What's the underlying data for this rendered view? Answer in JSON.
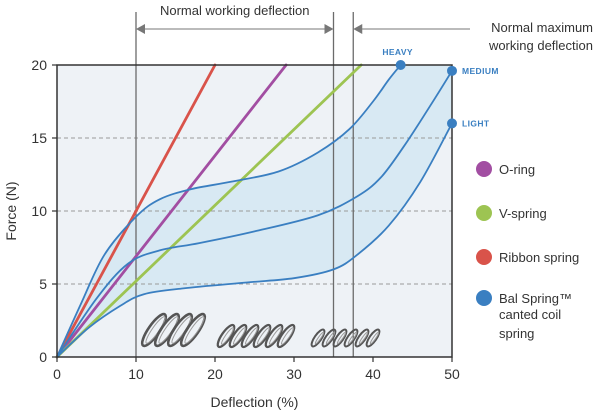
{
  "chart_data": {
    "type": "line",
    "xlabel": "Deflection (%)",
    "ylabel": "Force (N)",
    "xlim": [
      0,
      50
    ],
    "ylim": [
      0,
      20
    ],
    "x_ticks": [
      "0",
      "10",
      "20",
      "30",
      "40",
      "50"
    ],
    "y_ticks": [
      "0",
      "5",
      "10",
      "15",
      "20"
    ],
    "grid": "horizontal dashed at y = 5, 10, 15",
    "annotations": {
      "normal_working": "Normal working deflection",
      "normal_max_line1": "Normal maximum",
      "normal_max_line2": "working deflection",
      "normal_working_range": [
        10,
        35
      ],
      "normal_max_at": 37.5
    },
    "shaded_region": "Bal Spring canted coil spring operating band (LIGHT to HEAVY)",
    "series": [
      {
        "name": "Ribbon spring",
        "color": "#d9534a",
        "points": [
          [
            0,
            0
          ],
          [
            20,
            20
          ]
        ]
      },
      {
        "name": "O-ring",
        "color": "#a24ea2",
        "points": [
          [
            0,
            0
          ],
          [
            29,
            20
          ]
        ]
      },
      {
        "name": "V-spring",
        "color": "#9dc452",
        "points": [
          [
            0,
            0
          ],
          [
            38.5,
            20
          ]
        ]
      },
      {
        "name": "HEAVY",
        "color": "#3a7fc1",
        "points": [
          [
            0,
            0
          ],
          [
            3,
            3.6
          ],
          [
            6,
            7
          ],
          [
            10,
            9.6
          ],
          [
            13,
            10.8
          ],
          [
            17,
            11.5
          ],
          [
            22,
            12
          ],
          [
            28,
            12.7
          ],
          [
            33,
            14
          ],
          [
            37,
            15.6
          ],
          [
            40,
            17.5
          ],
          [
            42,
            19
          ],
          [
            43.5,
            20
          ]
        ]
      },
      {
        "name": "MEDIUM",
        "color": "#3a7fc1",
        "points": [
          [
            0,
            0
          ],
          [
            5,
            4
          ],
          [
            9,
            6.4
          ],
          [
            13,
            7.3
          ],
          [
            18,
            7.8
          ],
          [
            25,
            8.6
          ],
          [
            33,
            9.7
          ],
          [
            38,
            11
          ],
          [
            41,
            12.3
          ],
          [
            44,
            14.5
          ],
          [
            47,
            17
          ],
          [
            50,
            19.6
          ]
        ]
      },
      {
        "name": "LIGHT",
        "color": "#3a7fc1",
        "points": [
          [
            0,
            0
          ],
          [
            4,
            2
          ],
          [
            8,
            3.5
          ],
          [
            11,
            4.3
          ],
          [
            16,
            4.7
          ],
          [
            24,
            5.1
          ],
          [
            30,
            5.4
          ],
          [
            35,
            6
          ],
          [
            38,
            7
          ],
          [
            42,
            9
          ],
          [
            46,
            12
          ],
          [
            50,
            16
          ]
        ]
      }
    ],
    "endpoint_labels": [
      "HEAVY",
      "MEDIUM",
      "LIGHT"
    ],
    "legend": {
      "placement": "right",
      "items": [
        {
          "label": "O-ring",
          "color": "#a24ea2"
        },
        {
          "label": "V-spring",
          "color": "#9dc452"
        },
        {
          "label": "Ribbon spring",
          "color": "#d9534a"
        },
        {
          "label": "Bal Spring™",
          "label_line2": "canted coil",
          "label_line3": "spring",
          "color": "#3a7fc1"
        }
      ]
    }
  }
}
